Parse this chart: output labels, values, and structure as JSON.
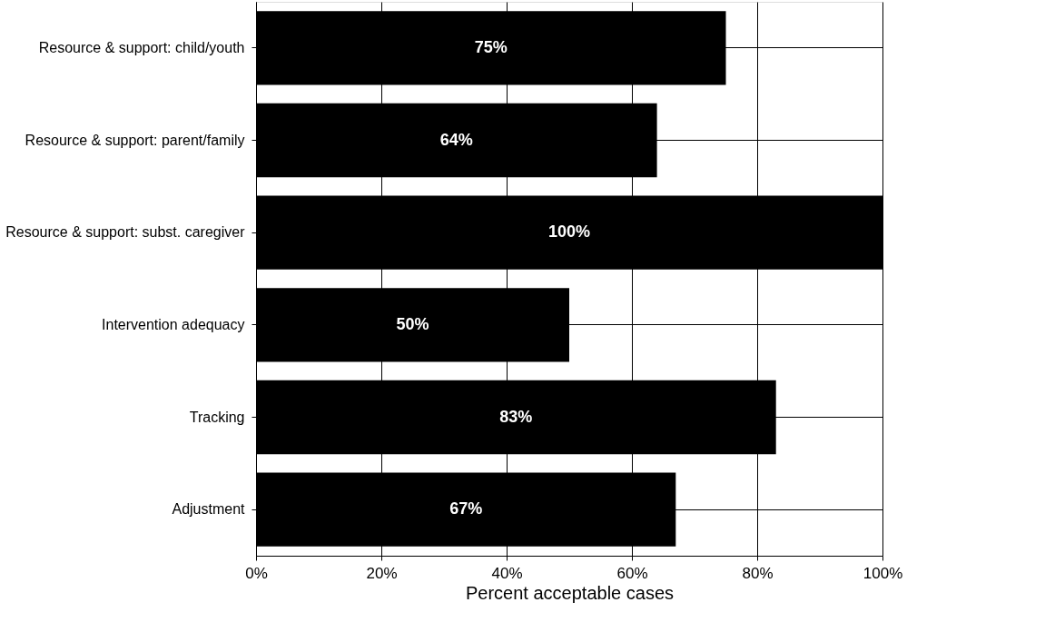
{
  "chart_data": {
    "type": "bar",
    "orientation": "horizontal",
    "xlabel": "Percent acceptable cases",
    "categories": [
      "Resource & support: child/youth",
      "Resource & support: parent/family",
      "Resource & support: subst. caregiver",
      "Intervention adequacy",
      "Tracking",
      "Adjustment"
    ],
    "values": [
      75,
      64,
      100,
      50,
      83,
      67
    ],
    "value_labels": [
      "75%",
      "64%",
      "100%",
      "50%",
      "83%",
      "67%"
    ],
    "color": "#000000",
    "xlim": [
      0,
      100
    ],
    "xticks": [
      {
        "value": 0,
        "label": "0%"
      },
      {
        "value": 20,
        "label": "20%"
      },
      {
        "value": 40,
        "label": "40%"
      },
      {
        "value": 60,
        "label": "60%"
      },
      {
        "value": 80,
        "label": "80%"
      },
      {
        "value": 100,
        "label": "100%"
      }
    ],
    "grid": true
  }
}
